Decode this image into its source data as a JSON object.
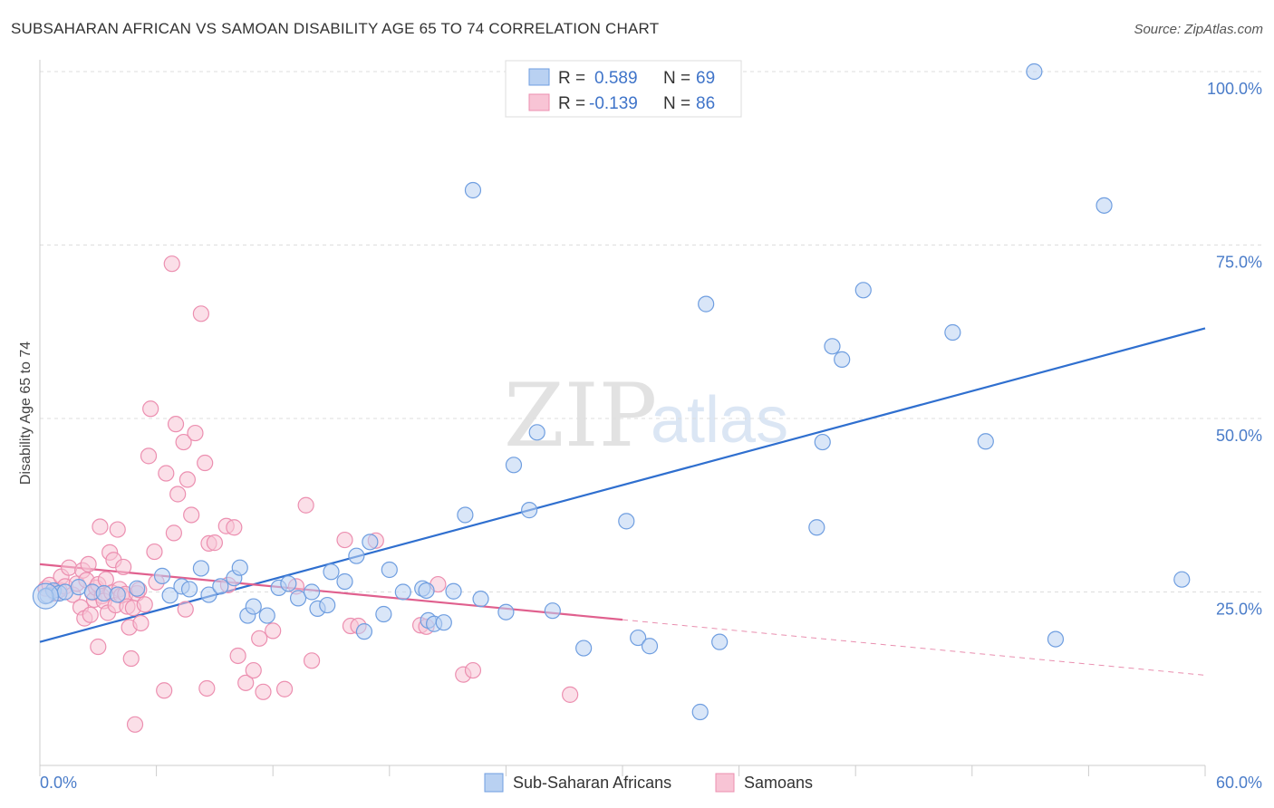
{
  "header": {
    "title": "SUBSAHARAN AFRICAN VS SAMOAN DISABILITY AGE 65 TO 74 CORRELATION CHART",
    "source": "Source: ZipAtlas.com"
  },
  "legend": {
    "r_label": "R =",
    "n_label": "N =",
    "series1": {
      "r": "0.589",
      "n": "69"
    },
    "series2": {
      "r": "-0.139",
      "n": "86"
    }
  },
  "watermark": {
    "zip": "ZIP",
    "atlas": "atlas"
  },
  "colors": {
    "blue_fill": "#b9d1f2",
    "blue_stroke": "#6f9ee0",
    "blue_line": "#2f6fcf",
    "pink_fill": "#f8c4d5",
    "pink_stroke": "#ec8fb0",
    "pink_line": "#e0608e",
    "tick_text": "#4a7cc9",
    "grid": "#dddddd"
  },
  "chart_data": {
    "type": "scatter",
    "title": "SUBSAHARAN AFRICAN VS SAMOAN DISABILITY AGE 65 TO 74 CORRELATION CHART",
    "xlabel": "",
    "ylabel": "Disability Age 65 to 74",
    "xlim": [
      0,
      60
    ],
    "ylim": [
      0,
      100
    ],
    "x_tick_labels": [
      "0.0%",
      "60.0%"
    ],
    "y_tick_labels": [
      {
        "value": 25,
        "label": "25.0%"
      },
      {
        "value": 50,
        "label": "50.0%"
      },
      {
        "value": 75,
        "label": "75.0%"
      },
      {
        "value": 100,
        "label": "100.0%"
      }
    ],
    "grid": true,
    "legend_position": "bottom",
    "series": [
      {
        "name": "Sub-Saharan Africans",
        "color": "#6f9ee0",
        "trend": {
          "x": [
            0,
            60
          ],
          "y": [
            17.8,
            63.0
          ],
          "style": "solid"
        },
        "points": [
          [
            0.4,
            24.5
          ],
          [
            0.7,
            25.2
          ],
          [
            1.0,
            24.8
          ],
          [
            1.3,
            25.0
          ],
          [
            2.0,
            25.7
          ],
          [
            2.7,
            25.0
          ],
          [
            3.3,
            24.8
          ],
          [
            4.0,
            24.6
          ],
          [
            5.0,
            25.5
          ],
          [
            6.3,
            27.3
          ],
          [
            6.7,
            24.5
          ],
          [
            7.3,
            25.8
          ],
          [
            7.7,
            25.4
          ],
          [
            8.3,
            28.4
          ],
          [
            8.7,
            24.6
          ],
          [
            9.3,
            25.8
          ],
          [
            10.0,
            27.0
          ],
          [
            10.3,
            28.5
          ],
          [
            10.7,
            21.6
          ],
          [
            11.0,
            22.9
          ],
          [
            11.7,
            21.6
          ],
          [
            12.3,
            25.6
          ],
          [
            12.8,
            26.2
          ],
          [
            13.3,
            24.1
          ],
          [
            14.0,
            25.0
          ],
          [
            14.3,
            22.6
          ],
          [
            14.8,
            23.1
          ],
          [
            15.0,
            27.9
          ],
          [
            15.7,
            26.5
          ],
          [
            16.3,
            30.2
          ],
          [
            16.7,
            19.3
          ],
          [
            17.0,
            32.2
          ],
          [
            17.7,
            21.8
          ],
          [
            18.0,
            28.2
          ],
          [
            18.7,
            25.0
          ],
          [
            19.7,
            25.5
          ],
          [
            19.9,
            25.2
          ],
          [
            20.0,
            20.9
          ],
          [
            20.3,
            20.4
          ],
          [
            20.8,
            20.6
          ],
          [
            21.3,
            25.1
          ],
          [
            21.9,
            36.1
          ],
          [
            22.3,
            82.9
          ],
          [
            22.7,
            24.0
          ],
          [
            24.0,
            22.1
          ],
          [
            24.4,
            43.3
          ],
          [
            25.2,
            36.8
          ],
          [
            25.6,
            48.0
          ],
          [
            26.4,
            22.3
          ],
          [
            28.0,
            16.9
          ],
          [
            30.2,
            35.2
          ],
          [
            30.8,
            18.4
          ],
          [
            31.4,
            17.2
          ],
          [
            32.0,
            100.0
          ],
          [
            34.0,
            7.7
          ],
          [
            34.3,
            66.5
          ],
          [
            35.0,
            17.8
          ],
          [
            40.0,
            34.3
          ],
          [
            40.3,
            46.6
          ],
          [
            40.8,
            60.4
          ],
          [
            41.3,
            58.5
          ],
          [
            42.4,
            68.5
          ],
          [
            47.0,
            62.4
          ],
          [
            48.7,
            46.7
          ],
          [
            51.2,
            100.0
          ],
          [
            52.3,
            18.2
          ],
          [
            54.8,
            80.7
          ],
          [
            58.8,
            26.8
          ],
          [
            0.3,
            24.4
          ]
        ]
      },
      {
        "name": "Samoans",
        "color": "#ec8fb0",
        "trend": {
          "x": [
            0,
            30
          ],
          "y": [
            29.0,
            21.0
          ],
          "style": "solid",
          "extended_to": [
            60,
            13.0
          ]
        },
        "points": [
          [
            0.3,
            25.5
          ],
          [
            0.5,
            26.0
          ],
          [
            0.8,
            24.8
          ],
          [
            1.0,
            25.3
          ],
          [
            1.1,
            27.2
          ],
          [
            1.3,
            25.8
          ],
          [
            1.5,
            28.5
          ],
          [
            1.7,
            24.6
          ],
          [
            1.9,
            26.2
          ],
          [
            2.1,
            22.8
          ],
          [
            2.2,
            28.1
          ],
          [
            2.3,
            21.2
          ],
          [
            2.4,
            26.7
          ],
          [
            2.5,
            29.0
          ],
          [
            2.6,
            21.7
          ],
          [
            2.7,
            24.9
          ],
          [
            2.8,
            23.9
          ],
          [
            2.9,
            25.6
          ],
          [
            3.0,
            26.1
          ],
          [
            3.0,
            17.1
          ],
          [
            3.1,
            34.4
          ],
          [
            3.2,
            24.4
          ],
          [
            3.3,
            23.7
          ],
          [
            3.4,
            26.8
          ],
          [
            3.5,
            22.0
          ],
          [
            3.6,
            30.7
          ],
          [
            3.7,
            24.9
          ],
          [
            3.8,
            29.6
          ],
          [
            3.9,
            23.1
          ],
          [
            4.0,
            34.0
          ],
          [
            4.1,
            25.4
          ],
          [
            4.2,
            24.5
          ],
          [
            4.3,
            28.6
          ],
          [
            4.4,
            24.7
          ],
          [
            4.5,
            22.9
          ],
          [
            4.6,
            19.9
          ],
          [
            4.7,
            15.4
          ],
          [
            4.8,
            22.7
          ],
          [
            4.9,
            5.9
          ],
          [
            5.0,
            24.8
          ],
          [
            5.1,
            25.3
          ],
          [
            5.2,
            20.5
          ],
          [
            5.4,
            23.2
          ],
          [
            5.6,
            44.6
          ],
          [
            5.7,
            51.4
          ],
          [
            5.9,
            30.8
          ],
          [
            6.0,
            26.4
          ],
          [
            6.4,
            10.8
          ],
          [
            6.5,
            42.1
          ],
          [
            6.8,
            72.3
          ],
          [
            6.9,
            33.5
          ],
          [
            7.0,
            49.2
          ],
          [
            7.1,
            39.1
          ],
          [
            7.4,
            46.6
          ],
          [
            7.5,
            22.5
          ],
          [
            7.6,
            41.2
          ],
          [
            7.8,
            36.1
          ],
          [
            8.0,
            47.9
          ],
          [
            8.3,
            65.1
          ],
          [
            8.5,
            43.6
          ],
          [
            8.6,
            11.1
          ],
          [
            8.7,
            32.0
          ],
          [
            9.0,
            32.1
          ],
          [
            9.6,
            34.5
          ],
          [
            9.7,
            26.0
          ],
          [
            10.0,
            34.3
          ],
          [
            10.2,
            15.8
          ],
          [
            10.6,
            11.9
          ],
          [
            11.0,
            13.7
          ],
          [
            11.3,
            18.3
          ],
          [
            11.5,
            10.6
          ],
          [
            12.0,
            19.4
          ],
          [
            12.6,
            11.0
          ],
          [
            13.2,
            25.8
          ],
          [
            13.7,
            37.5
          ],
          [
            14.0,
            15.1
          ],
          [
            15.7,
            32.5
          ],
          [
            16.0,
            20.1
          ],
          [
            16.4,
            20.1
          ],
          [
            17.3,
            32.4
          ],
          [
            19.6,
            20.2
          ],
          [
            19.9,
            20.0
          ],
          [
            20.5,
            26.1
          ],
          [
            21.8,
            13.1
          ],
          [
            22.3,
            13.7
          ],
          [
            27.3,
            10.2
          ]
        ]
      }
    ]
  }
}
